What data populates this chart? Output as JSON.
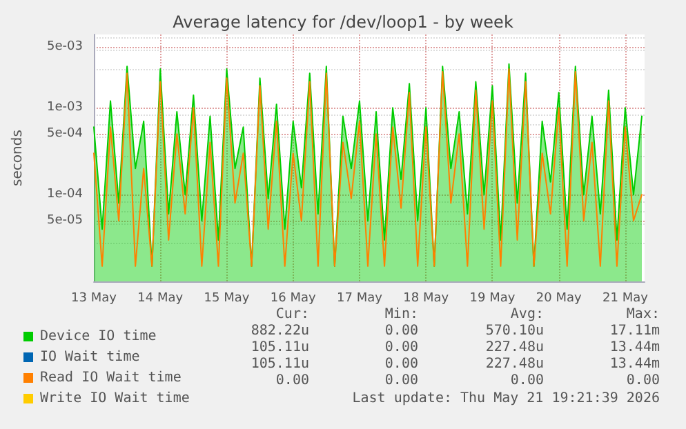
{
  "chart_data": {
    "type": "line",
    "title": "Average latency for /dev/loop1 - by week",
    "ylabel": "seconds",
    "log": "y",
    "grid": true,
    "legend": "bottom left",
    "marker": "none",
    "line_style": "solid",
    "x": [
      "2026-05-13T00:00",
      "2026-05-13T03:00",
      "2026-05-13T06:00",
      "2026-05-13T09:00",
      "2026-05-13T12:00",
      "2026-05-13T15:00",
      "2026-05-13T18:00",
      "2026-05-13T21:00",
      "2026-05-14T00:00",
      "2026-05-14T03:00",
      "2026-05-14T06:00",
      "2026-05-14T09:00",
      "2026-05-14T12:00",
      "2026-05-14T15:00",
      "2026-05-14T18:00",
      "2026-05-14T21:00",
      "2026-05-15T00:00",
      "2026-05-15T03:00",
      "2026-05-15T06:00",
      "2026-05-15T09:00",
      "2026-05-15T12:00",
      "2026-05-15T15:00",
      "2026-05-15T18:00",
      "2026-05-15T21:00",
      "2026-05-16T00:00",
      "2026-05-16T03:00",
      "2026-05-16T06:00",
      "2026-05-16T09:00",
      "2026-05-16T12:00",
      "2026-05-16T15:00",
      "2026-05-16T18:00",
      "2026-05-16T21:00",
      "2026-05-17T00:00",
      "2026-05-17T03:00",
      "2026-05-17T06:00",
      "2026-05-17T09:00",
      "2026-05-17T12:00",
      "2026-05-17T15:00",
      "2026-05-17T18:00",
      "2026-05-17T21:00",
      "2026-05-18T00:00",
      "2026-05-18T03:00",
      "2026-05-18T06:00",
      "2026-05-18T09:00",
      "2026-05-18T12:00",
      "2026-05-18T15:00",
      "2026-05-18T18:00",
      "2026-05-18T21:00",
      "2026-05-19T00:00",
      "2026-05-19T03:00",
      "2026-05-19T06:00",
      "2026-05-19T09:00",
      "2026-05-19T12:00",
      "2026-05-19T15:00",
      "2026-05-19T18:00",
      "2026-05-19T21:00",
      "2026-05-20T00:00",
      "2026-05-20T03:00",
      "2026-05-20T06:00",
      "2026-05-20T09:00",
      "2026-05-20T12:00",
      "2026-05-20T15:00",
      "2026-05-20T18:00",
      "2026-05-20T21:00",
      "2026-05-21T00:00",
      "2026-05-21T03:00",
      "2026-05-21T06:00"
    ],
    "xlim": [
      "2026-05-13T00:00",
      "2026-05-21T07:00"
    ],
    "xticks": [
      {
        "value": "2026-05-13",
        "label": "13 May"
      },
      {
        "value": "2026-05-14",
        "label": "14 May"
      },
      {
        "value": "2026-05-15",
        "label": "15 May"
      },
      {
        "value": "2026-05-16",
        "label": "16 May"
      },
      {
        "value": "2026-05-17",
        "label": "17 May"
      },
      {
        "value": "2026-05-18",
        "label": "18 May"
      },
      {
        "value": "2026-05-19",
        "label": "19 May"
      },
      {
        "value": "2026-05-20",
        "label": "20 May"
      },
      {
        "value": "2026-05-21",
        "label": "21 May"
      }
    ],
    "ylim": [
      1e-05,
      0.007
    ],
    "yticks": [
      {
        "value": 5e-05,
        "label": "5e-05"
      },
      {
        "value": 0.0001,
        "label": "1e-04"
      },
      {
        "value": 0.0005,
        "label": "5e-04"
      },
      {
        "value": 0.001,
        "label": "1e-03"
      },
      {
        "value": 0.005,
        "label": "5e-03"
      }
    ],
    "series": [
      {
        "name": "Device IO time",
        "type": "area",
        "color": "#00cc00",
        "values": [
          0.0006,
          4e-05,
          0.0012,
          8e-05,
          0.003,
          0.0002,
          0.0007,
          1.5e-05,
          0.0028,
          6e-05,
          0.0009,
          0.0001,
          0.0014,
          5e-05,
          0.0008,
          3e-05,
          0.0028,
          0.0002,
          0.0006,
          1.5e-05,
          0.0022,
          9e-05,
          0.0011,
          4e-05,
          0.0007,
          0.00012,
          0.0025,
          6e-05,
          0.003,
          1.5e-05,
          0.0008,
          0.0002,
          0.0012,
          5e-05,
          0.0009,
          3e-05,
          0.001,
          0.00015,
          0.0019,
          5e-05,
          0.001,
          1.5e-05,
          0.003,
          0.0002,
          0.0009,
          6e-05,
          0.002,
          0.0001,
          0.0018,
          3e-05,
          0.0032,
          8e-05,
          0.0025,
          1.5e-05,
          0.0007,
          0.00014,
          0.0015,
          4e-05,
          0.003,
          0.0001,
          0.0008,
          6e-05,
          0.0016,
          3e-05,
          0.001,
          0.0001,
          0.0008
        ]
      },
      {
        "name": "IO Wait time",
        "color": "#0066b3",
        "values": [
          null,
          null,
          null,
          null,
          null,
          null,
          null,
          null,
          null,
          null,
          null,
          null,
          null,
          null,
          null,
          null,
          null,
          null,
          null,
          null,
          null,
          null,
          null,
          null,
          null,
          null,
          null,
          null,
          null,
          null,
          null,
          null,
          null,
          null,
          null,
          null,
          null,
          null,
          null,
          null,
          null,
          null,
          null,
          null,
          null,
          null,
          null,
          null,
          null,
          null,
          null,
          null,
          null,
          null,
          null,
          null,
          null,
          null,
          null,
          null,
          null,
          null,
          null,
          null,
          null,
          null,
          null
        ]
      },
      {
        "name": "Read IO Wait time",
        "color": "#ff8000",
        "values": [
          0.0003,
          1.5e-05,
          0.0006,
          5e-05,
          0.0025,
          1.5e-05,
          0.0002,
          1.5e-05,
          0.002,
          3e-05,
          0.0005,
          6e-05,
          0.001,
          1.5e-05,
          0.0004,
          1.5e-05,
          0.0022,
          8e-05,
          0.0003,
          1.5e-05,
          0.0018,
          4e-05,
          0.0007,
          1.5e-05,
          0.0003,
          5e-05,
          0.002,
          1.5e-05,
          0.0025,
          1.5e-05,
          0.0004,
          9e-05,
          0.0007,
          1.5e-05,
          0.0005,
          1.5e-05,
          0.0006,
          7e-05,
          0.0015,
          1.5e-05,
          0.0006,
          1.5e-05,
          0.0026,
          8e-05,
          0.0005,
          1.5e-05,
          0.0016,
          4e-05,
          0.0012,
          1.5e-05,
          0.0028,
          3e-05,
          0.002,
          1.5e-05,
          0.0003,
          6e-05,
          0.001,
          1.5e-05,
          0.0026,
          5e-05,
          0.0004,
          1.5e-05,
          0.0012,
          1.5e-05,
          0.0006,
          5e-05,
          0.0001
        ]
      },
      {
        "name": "Write IO Wait time",
        "color": "#ffcc00",
        "values": [
          null,
          null,
          null,
          null,
          null,
          null,
          null,
          null,
          null,
          null,
          null,
          null,
          null,
          null,
          null,
          null,
          null,
          null,
          null,
          null,
          null,
          null,
          null,
          null,
          null,
          null,
          null,
          null,
          null,
          null,
          null,
          null,
          null,
          null,
          null,
          null,
          null,
          null,
          null,
          null,
          null,
          null,
          null,
          null,
          null,
          null,
          null,
          null,
          null,
          null,
          null,
          null,
          null,
          null,
          null,
          null,
          null,
          null,
          null,
          null,
          null,
          null,
          null,
          null,
          null,
          null,
          null
        ]
      }
    ],
    "annotations": [
      "Cur:",
      "Min:",
      "Avg:",
      "Max:",
      "882.22u",
      "0.00",
      "570.10u",
      "17.11m",
      "105.11u",
      "0.00",
      "227.48u",
      "13.44m",
      "105.11u",
      "0.00",
      "227.48u",
      "13.44m",
      "0.00",
      "0.00",
      "0.00",
      "0.00",
      "Last update: Thu May 21 19:21:39 2026"
    ]
  }
}
